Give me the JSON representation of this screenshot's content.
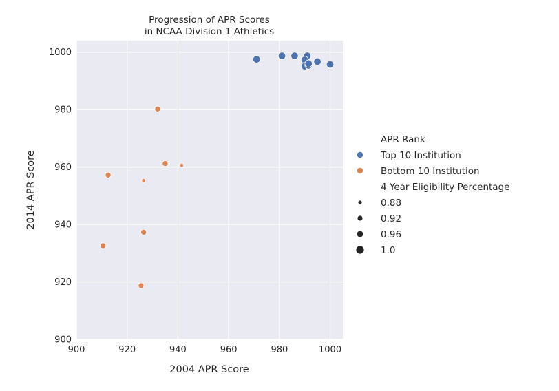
{
  "chart_data": {
    "type": "scatter",
    "title_lines": [
      "Progression of APR Scores",
      "in NCAA Division 1 Athletics"
    ],
    "xlabel": "2004 APR Score",
    "ylabel": "2014 APR Score",
    "xlim": [
      900,
      1005
    ],
    "ylim": [
      900,
      1004
    ],
    "xticks": [
      "900",
      "920",
      "940",
      "960",
      "980",
      "1000"
    ],
    "yticks": [
      "900",
      "920",
      "940",
      "960",
      "980",
      "1000"
    ],
    "grid": true,
    "background": "#eaeaf2",
    "legend": {
      "placement": "right",
      "hue_title": "APR Rank",
      "size_title": "4 Year Eligibility Percentage",
      "size_entries": [
        "0.88",
        "0.92",
        "0.96",
        "1.0"
      ],
      "size_values": [
        0.88,
        0.92,
        0.96,
        1.0
      ]
    },
    "series": [
      {
        "name": "Top 10 Institution",
        "color": "#4c72b0",
        "points": [
          {
            "x": 971,
            "y": 997.5,
            "s": 0.99
          },
          {
            "x": 981,
            "y": 998.7,
            "s": 0.99
          },
          {
            "x": 986,
            "y": 998.7,
            "s": 0.99
          },
          {
            "x": 991,
            "y": 998.7,
            "s": 0.99
          },
          {
            "x": 990,
            "y": 997.3,
            "s": 0.99
          },
          {
            "x": 990,
            "y": 995.1,
            "s": 0.99
          },
          {
            "x": 991.5,
            "y": 995.4,
            "s": 0.99
          },
          {
            "x": 991.5,
            "y": 996.0,
            "s": 0.99
          },
          {
            "x": 995,
            "y": 996.7,
            "s": 0.99
          },
          {
            "x": 1000,
            "y": 995.7,
            "s": 0.99
          }
        ]
      },
      {
        "name": "Bottom 10 Institution",
        "color": "#dd8452",
        "points": [
          {
            "x": 932,
            "y": 980.2,
            "s": 0.94
          },
          {
            "x": 935,
            "y": 961.2,
            "s": 0.94
          },
          {
            "x": 941.5,
            "y": 960.6,
            "s": 0.89
          },
          {
            "x": 912.5,
            "y": 957.2,
            "s": 0.94
          },
          {
            "x": 926.5,
            "y": 955.3,
            "s": 0.89
          },
          {
            "x": 926.5,
            "y": 937.3,
            "s": 0.94
          },
          {
            "x": 910.5,
            "y": 932.6,
            "s": 0.94
          },
          {
            "x": 925.5,
            "y": 918.7,
            "s": 0.94
          }
        ]
      }
    ]
  }
}
